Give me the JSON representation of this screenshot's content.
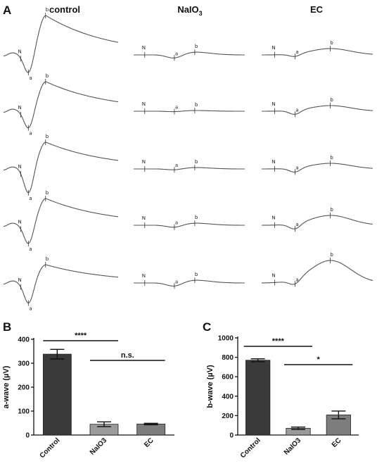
{
  "panels": {
    "A": "A",
    "B": "B",
    "C": "C"
  },
  "erg_panel": {
    "columns": [
      {
        "title": "control",
        "subscript": ""
      },
      {
        "title": "NaIO",
        "subscript": "3"
      },
      {
        "title": "EC",
        "subscript": ""
      }
    ],
    "marker_labels": {
      "n": "N",
      "a": "a",
      "b": "b"
    }
  },
  "chart_data": [
    {
      "type": "bar",
      "panel": "B",
      "categories": [
        "Control",
        "NaIO3",
        "EC"
      ],
      "values": [
        338,
        45,
        46
      ],
      "errors": [
        20,
        10,
        3
      ],
      "ylabel": "a-wave (µV)",
      "ylim": [
        0,
        400
      ],
      "yticks": [
        0,
        100,
        200,
        300,
        400
      ],
      "colors": [
        "#3a3a3a",
        "#9b9b9b",
        "#7d7d7d"
      ],
      "significance": [
        {
          "from": 0,
          "to": 1,
          "label": "****"
        },
        {
          "from": 1,
          "to": 2,
          "label": "n.s."
        }
      ]
    },
    {
      "type": "bar",
      "panel": "C",
      "categories": [
        "Control",
        "NaIO3",
        "EC"
      ],
      "values": [
        770,
        70,
        207
      ],
      "errors": [
        15,
        12,
        40
      ],
      "ylabel": "b-wave (µV)",
      "ylim": [
        0,
        1000
      ],
      "yticks": [
        0,
        200,
        400,
        600,
        800,
        1000
      ],
      "colors": [
        "#3a3a3a",
        "#9b9b9b",
        "#7d7d7d"
      ],
      "significance": [
        {
          "from": 0,
          "to": 1,
          "label": "****"
        },
        {
          "from": 1,
          "to": 2,
          "label": "*"
        }
      ]
    }
  ]
}
